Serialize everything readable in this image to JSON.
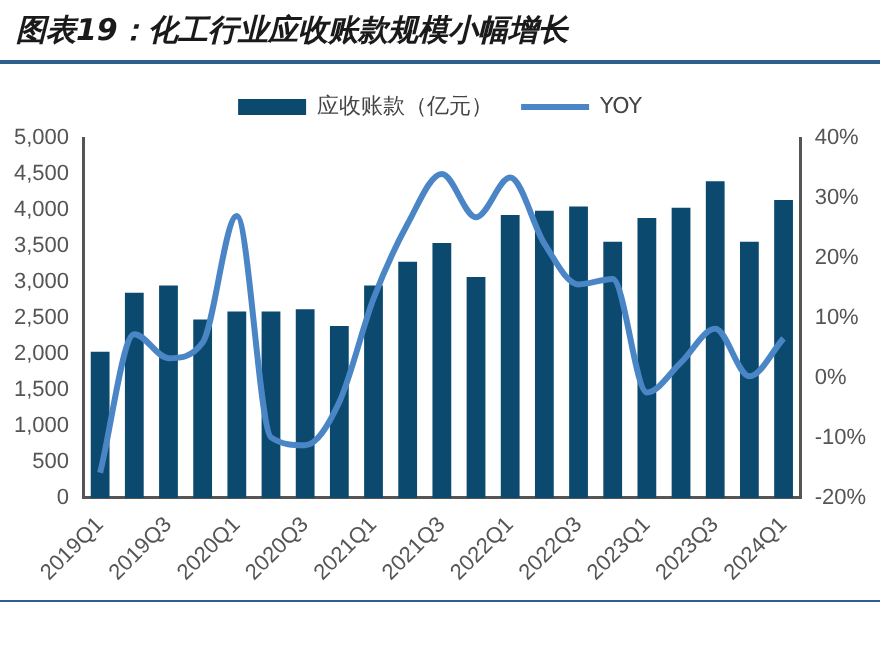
{
  "chart_data": {
    "type": "bar",
    "title": "图表19：化工行业应收账款规模小幅增长",
    "categories": [
      "2019Q1",
      null,
      "2019Q3",
      null,
      "2020Q1",
      null,
      "2020Q3",
      null,
      "2021Q1",
      null,
      "2021Q3",
      null,
      "2022Q1",
      null,
      "2022Q3",
      null,
      "2023Q1",
      null,
      "2023Q3",
      null,
      "2024Q1"
    ],
    "series": [
      {
        "name": "应收账款（亿元）",
        "color": "#0b4a6e",
        "values": [
          2030,
          2850,
          2950,
          2480,
          2590,
          2590,
          2620,
          2390,
          2950,
          3280,
          3540,
          3070,
          3930,
          3990,
          4050,
          3560,
          3890,
          4030,
          4400,
          3560,
          4140
        ]
      },
      {
        "name": "YOY",
        "type": "line",
        "axis": "y2",
        "color": "#4a86c5",
        "values": [
          -15.8,
          7.3,
          3.3,
          5.9,
          27,
          -9.9,
          -11.2,
          -4,
          13.2,
          25.7,
          34,
          26.8,
          33.4,
          22.4,
          15.6,
          16.5,
          -2.4,
          2.6,
          8.2,
          0.3,
          6.6
        ]
      }
    ],
    "ylim": [
      0,
      5000
    ],
    "yticks": [
      0,
      {
        "value": 500,
        "label": "500"
      },
      {
        "value": 1000,
        "label": "1,000"
      },
      {
        "value": 1500,
        "label": "1,500"
      },
      {
        "value": 2000,
        "label": "2,000"
      },
      {
        "value": 2500,
        "label": "2,500"
      },
      {
        "value": 3000,
        "label": "3,000"
      },
      {
        "value": 3500,
        "label": "3,500"
      },
      {
        "value": 4000,
        "label": "4,000"
      },
      {
        "value": 4500,
        "label": "4,500"
      },
      {
        "value": 5000,
        "label": "5,000"
      }
    ],
    "y2lim": [
      -20,
      40
    ],
    "y2ticks": [
      {
        "value": -20,
        "label": "-20%"
      },
      {
        "value": -10,
        "label": "-10%"
      },
      {
        "value": 0,
        "label": "0%"
      },
      {
        "value": 10,
        "label": "10%"
      },
      {
        "value": 20,
        "label": "20%"
      },
      {
        "value": 30,
        "label": "30%"
      },
      {
        "value": 40,
        "label": "40%"
      }
    ],
    "legend": "top",
    "grid": false,
    "marker": "none",
    "line_style": "solid"
  }
}
